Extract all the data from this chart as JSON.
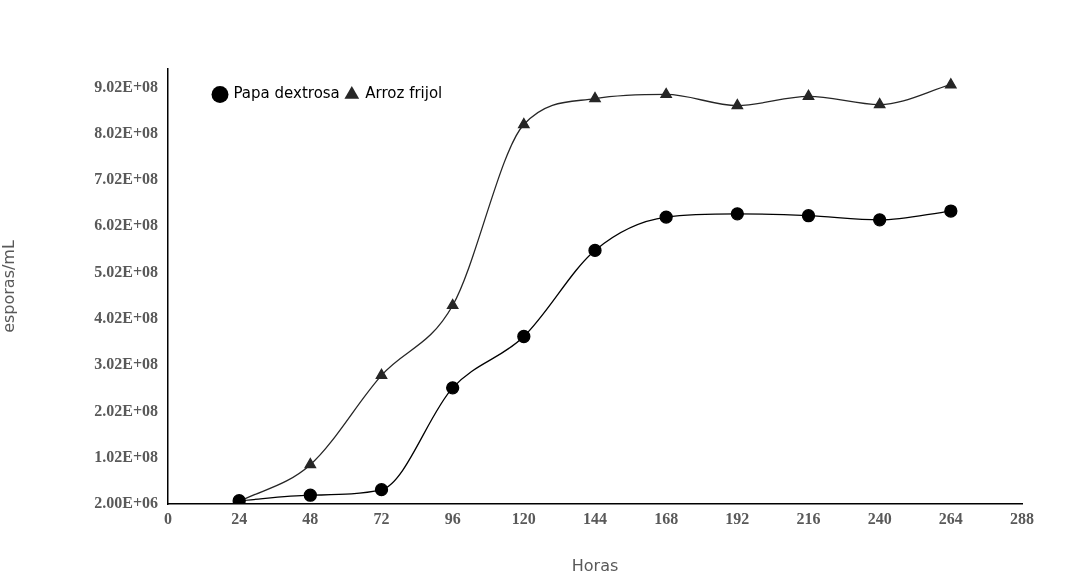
{
  "chart_data": {
    "type": "line",
    "xlabel": "Horas",
    "ylabel": "esporas/mL",
    "x": [
      24,
      48,
      72,
      96,
      120,
      144,
      168,
      192,
      216,
      240,
      264
    ],
    "series": [
      {
        "name": "Papa dextrosa",
        "color": "#000000",
        "marker": "circle",
        "values": [
          9000000,
          21000000,
          33000000,
          253000000,
          364000000,
          550000000,
          622000000,
          629000000,
          625000000,
          616000000,
          635000000
        ]
      },
      {
        "name": "Arroz frijol",
        "color": "#262626",
        "marker": "triangle",
        "values": [
          7000000,
          87000000,
          280000000,
          431000000,
          822000000,
          878000000,
          887000000,
          863000000,
          883000000,
          865000000,
          908000000
        ]
      }
    ],
    "xlim": [
      0,
      288
    ],
    "xticks": [
      0,
      24,
      48,
      72,
      96,
      120,
      144,
      168,
      192,
      216,
      240,
      264,
      288
    ],
    "ylim": [
      2000000,
      942000000
    ],
    "yticks": [
      {
        "value": 2000000,
        "label": "2.00E+06"
      },
      {
        "value": 102000000,
        "label": "1.02E+08"
      },
      {
        "value": 202000000,
        "label": "2.02E+08"
      },
      {
        "value": 302000000,
        "label": "3.02E+08"
      },
      {
        "value": 402000000,
        "label": "4.02E+08"
      },
      {
        "value": 502000000,
        "label": "5.02E+08"
      },
      {
        "value": 602000000,
        "label": "6.02E+08"
      },
      {
        "value": 702000000,
        "label": "7.02E+08"
      },
      {
        "value": 802000000,
        "label": "8.02E+08"
      },
      {
        "value": 902000000,
        "label": "9.02E+08"
      }
    ],
    "grid": false,
    "legend": "top left",
    "line_style": "solid"
  }
}
